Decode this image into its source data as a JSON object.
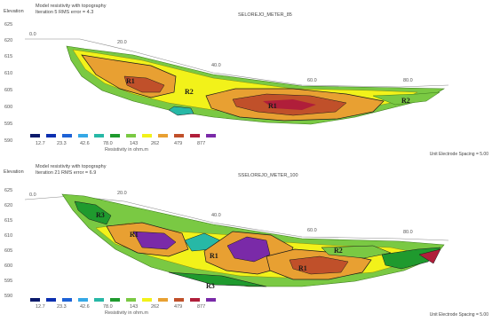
{
  "colors": {
    "scale": [
      "#0a1a6b",
      "#0b2fb0",
      "#1d62d6",
      "#35a8e6",
      "#27b8a6",
      "#1f9a2e",
      "#7ac943",
      "#f2f21a",
      "#e8a032",
      "#c0502a",
      "#b01e3a",
      "#7a2aa8"
    ],
    "outline": "#1a1a1a"
  },
  "scale": {
    "labels": [
      "12.7",
      "23.3",
      "42.6",
      "78.0",
      "143",
      "262",
      "479",
      "877"
    ],
    "title": "Resistivity in ohm.m"
  },
  "unit_label": "Unit Electrode Spacing = 5.00",
  "axis_label": "Elevation",
  "panels": [
    {
      "id": "top",
      "title": "SELOREJO_METER_85",
      "info1": "Model resistivity with topography",
      "info2": "Iteration 5 RMS error = 4.3",
      "y_ticks": [
        "625",
        "620",
        "615",
        "610",
        "605",
        "600",
        "595",
        "590"
      ],
      "x_ticks": [
        "0.0",
        "20.0",
        "40.0",
        "60.0",
        "80.0"
      ],
      "regions": [
        "R1",
        "R2",
        "R1",
        "R2"
      ]
    },
    {
      "id": "bottom",
      "title": "SSELOREJO_METER_100",
      "info1": "Model resistivity with topography",
      "info2": "Iteration 21 RMS error = 6.9",
      "y_ticks": [
        "625",
        "620",
        "615",
        "610",
        "605",
        "600",
        "595",
        "590"
      ],
      "x_ticks": [
        "0.0",
        "20.0",
        "40.0",
        "60.0",
        "80.0"
      ],
      "regions": [
        "R3",
        "R1",
        "R1",
        "R1",
        "R2",
        "R3"
      ]
    }
  ]
}
